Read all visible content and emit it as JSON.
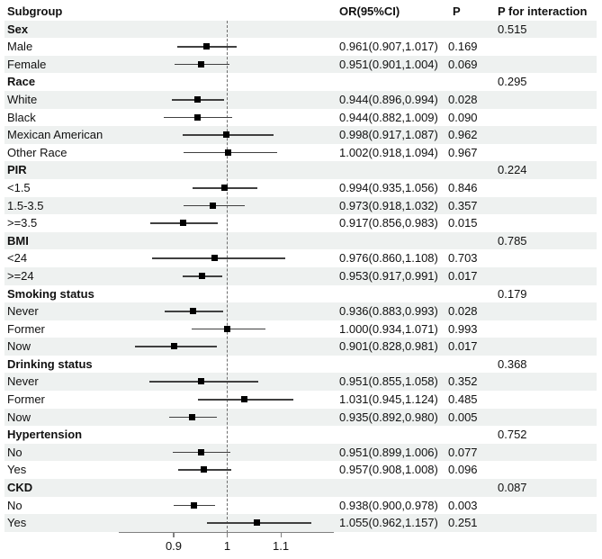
{
  "chart_data": {
    "type": "forest",
    "columns": {
      "subgroup": "Subgroup",
      "or": "OR(95%CI)",
      "p": "P",
      "p_interaction": "P for interaction"
    },
    "xlim": [
      0.7975,
      1.199
    ],
    "reference_line": 1,
    "x_ticks": [
      {
        "value": 0.9,
        "label": "0.9"
      },
      {
        "value": 1.0,
        "label": "1"
      },
      {
        "value": 1.1,
        "label": "1.1"
      }
    ],
    "legend_position": "none",
    "grid": false,
    "rows": [
      {
        "label": "Sex",
        "bold": true,
        "p_interaction": "0.515"
      },
      {
        "label": "Male",
        "or": 0.961,
        "lo": 0.907,
        "hi": 1.017,
        "or_text": "0.961(0.907,1.017)",
        "p": "0.169"
      },
      {
        "label": "Female",
        "or": 0.951,
        "lo": 0.901,
        "hi": 1.004,
        "or_text": "0.951(0.901,1.004)",
        "p": "0.069"
      },
      {
        "label": "Race",
        "bold": true,
        "p_interaction": "0.295"
      },
      {
        "label": "White",
        "or": 0.944,
        "lo": 0.896,
        "hi": 0.994,
        "or_text": "0.944(0.896,0.994)",
        "p": "0.028"
      },
      {
        "label": "Black",
        "or": 0.944,
        "lo": 0.882,
        "hi": 1.009,
        "or_text": "0.944(0.882,1.009)",
        "p": "0.090"
      },
      {
        "label": "Mexican American",
        "or": 0.998,
        "lo": 0.917,
        "hi": 1.087,
        "or_text": "0.998(0.917,1.087)",
        "p": "0.962"
      },
      {
        "label": "Other Race",
        "or": 1.002,
        "lo": 0.918,
        "hi": 1.094,
        "or_text": "1.002(0.918,1.094)",
        "p": "0.967"
      },
      {
        "label": "PIR",
        "bold": true,
        "p_interaction": "0.224"
      },
      {
        "label": "<1.5",
        "or": 0.994,
        "lo": 0.935,
        "hi": 1.056,
        "or_text": "0.994(0.935,1.056)",
        "p": "0.846"
      },
      {
        "label": "1.5-3.5",
        "or": 0.973,
        "lo": 0.918,
        "hi": 1.032,
        "or_text": "0.973(0.918,1.032)",
        "p": "0.357"
      },
      {
        "label": ">=3.5",
        "or": 0.917,
        "lo": 0.856,
        "hi": 0.983,
        "or_text": "0.917(0.856,0.983)",
        "p": "0.015"
      },
      {
        "label": "BMI",
        "bold": true,
        "p_interaction": "0.785"
      },
      {
        "label": "<24",
        "or": 0.976,
        "lo": 0.86,
        "hi": 1.108,
        "or_text": "0.976(0.860,1.108)",
        "p": "0.703"
      },
      {
        "label": ">=24",
        "or": 0.953,
        "lo": 0.917,
        "hi": 0.991,
        "or_text": "0.953(0.917,0.991)",
        "p": "0.017"
      },
      {
        "label": "Smoking status",
        "bold": true,
        "p_interaction": "0.179"
      },
      {
        "label": "Never",
        "or": 0.936,
        "lo": 0.883,
        "hi": 0.993,
        "or_text": "0.936(0.883,0.993)",
        "p": "0.028"
      },
      {
        "label": "Former",
        "or": 1.0,
        "lo": 0.934,
        "hi": 1.071,
        "or_text": "1.000(0.934,1.071)",
        "p": "0.993"
      },
      {
        "label": "Now",
        "or": 0.901,
        "lo": 0.828,
        "hi": 0.981,
        "or_text": "0.901(0.828,0.981)",
        "p": "0.017"
      },
      {
        "label": "Drinking status",
        "bold": true,
        "p_interaction": "0.368"
      },
      {
        "label": "Never",
        "or": 0.951,
        "lo": 0.855,
        "hi": 1.058,
        "or_text": "0.951(0.855,1.058)",
        "p": "0.352"
      },
      {
        "label": "Former",
        "or": 1.031,
        "lo": 0.945,
        "hi": 1.124,
        "or_text": "1.031(0.945,1.124)",
        "p": "0.485"
      },
      {
        "label": "Now",
        "or": 0.935,
        "lo": 0.892,
        "hi": 0.98,
        "or_text": "0.935(0.892,0.980)",
        "p": "0.005"
      },
      {
        "label": "Hypertension",
        "bold": true,
        "p_interaction": "0.752"
      },
      {
        "label": "No",
        "or": 0.951,
        "lo": 0.899,
        "hi": 1.006,
        "or_text": "0.951(0.899,1.006)",
        "p": "0.077"
      },
      {
        "label": "Yes",
        "or": 0.957,
        "lo": 0.908,
        "hi": 1.008,
        "or_text": "0.957(0.908,1.008)",
        "p": "0.096"
      },
      {
        "label": "CKD",
        "bold": true,
        "p_interaction": "0.087"
      },
      {
        "label": "No",
        "or": 0.938,
        "lo": 0.9,
        "hi": 0.978,
        "or_text": "0.938(0.900,0.978)",
        "p": "0.003"
      },
      {
        "label": "Yes",
        "or": 1.055,
        "lo": 0.962,
        "hi": 1.157,
        "or_text": "1.055(0.962,1.157)",
        "p": "0.251"
      }
    ],
    "colors": {
      "stripe": "#eef1f0",
      "ci_line": "#404040",
      "marker": "#000000",
      "reference_line": "#6e6e6e",
      "axis": "#808080"
    }
  }
}
